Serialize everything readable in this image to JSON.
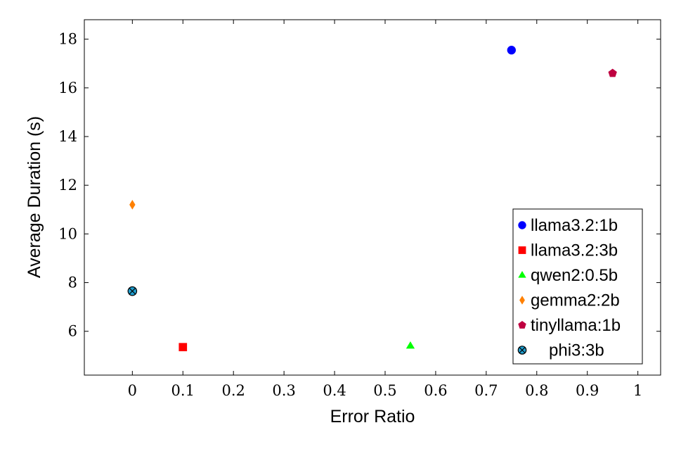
{
  "chart_data": {
    "type": "scatter",
    "title": "",
    "xlabel": "Error Ratio",
    "ylabel": "Average Duration (s)",
    "xlim": [
      -0.095,
      1.045
    ],
    "ylim": [
      4.2,
      18.8
    ],
    "xticks": [
      0,
      0.1,
      0.2,
      0.3,
      0.4,
      0.5,
      0.6,
      0.7,
      0.8,
      0.9,
      1
    ],
    "xtick_labels": [
      "0",
      "0.1",
      "0.2",
      "0.3",
      "0.4",
      "0.5",
      "0.6",
      "0.7",
      "0.8",
      "0.9",
      "1"
    ],
    "yticks": [
      6,
      8,
      10,
      12,
      14,
      16,
      18
    ],
    "ytick_labels": [
      "6",
      "8",
      "10",
      "12",
      "14",
      "16",
      "18"
    ],
    "grid": false,
    "legend_position": "bottom-right",
    "series": [
      {
        "name": "llama3.2:1b",
        "marker": "circle",
        "color": "#0000ff",
        "x": [
          0.75
        ],
        "y": [
          17.55
        ]
      },
      {
        "name": "llama3.2:3b",
        "marker": "square",
        "color": "#ff0000",
        "x": [
          0.1
        ],
        "y": [
          5.35
        ]
      },
      {
        "name": "qwen2:0.5b",
        "marker": "triangle",
        "color": "#00ff00",
        "x": [
          0.55
        ],
        "y": [
          5.4
        ]
      },
      {
        "name": "gemma2:2b",
        "marker": "diamond",
        "color": "#ff8000",
        "x": [
          0.0
        ],
        "y": [
          11.2
        ]
      },
      {
        "name": "tinyllama:1b",
        "marker": "pentagon",
        "color": "#bf0040",
        "x": [
          0.95
        ],
        "y": [
          16.6
        ]
      },
      {
        "name": "phi3:3b",
        "marker": "otimes",
        "color": "#1f9fd0",
        "x": [
          0.0
        ],
        "y": [
          7.65
        ]
      }
    ]
  }
}
